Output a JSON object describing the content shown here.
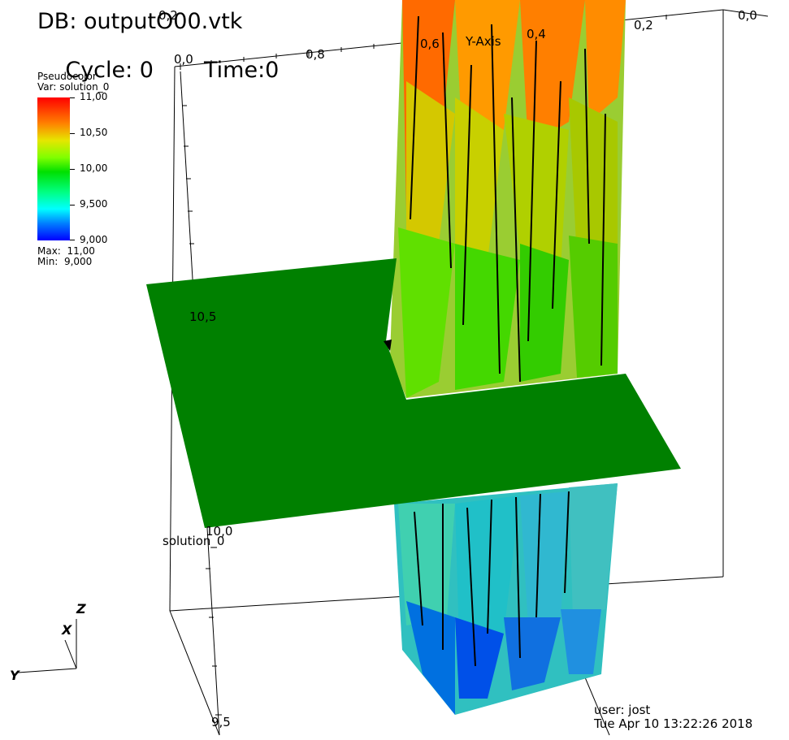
{
  "header": {
    "db_label": "DB: outputO00.vtk",
    "cycle_label": "Cycle: 0",
    "time_label": "Time:0"
  },
  "legend": {
    "plot_type": "Pseudocolor",
    "var_label": "Var: solution_0",
    "ticks": [
      "11,00",
      "10,50",
      "10,00",
      "9,500",
      "9,000"
    ],
    "max_label": "Max:  11,00",
    "min_label": "Min:  9,000",
    "colors": [
      "#ff0000",
      "#ff8000",
      "#e6e600",
      "#80ff00",
      "#00e000",
      "#00ff80",
      "#00ffff",
      "#0080ff",
      "#0000ff"
    ]
  },
  "axes": {
    "top_axis_ticks": [
      "0,0",
      "0,8",
      "0,6",
      "0,4",
      "0,2",
      "0,0"
    ],
    "top_axis_title": "Y-Axis",
    "corner_label": "0,2",
    "left_axis_ticks": [
      "10,5",
      "10,0",
      "9,5"
    ],
    "left_axis_title": "solution_0"
  },
  "triad": {
    "x": "X",
    "y": "Y",
    "z": "Z"
  },
  "footer": {
    "user": "user: jost",
    "date": "Tue Apr 10 13:22:26 2018"
  },
  "colors": {
    "plane": "#008000",
    "background": "#ffffff"
  }
}
